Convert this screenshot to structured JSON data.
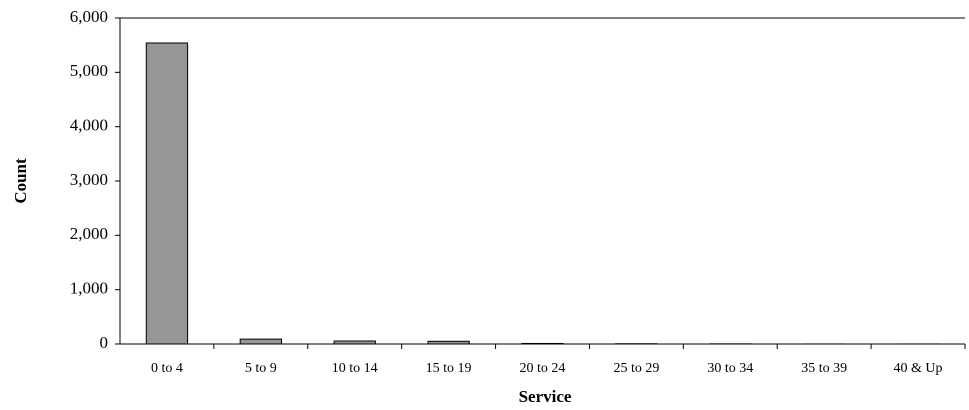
{
  "chart_data": {
    "type": "bar",
    "x_label": "Service",
    "y_label": "Count",
    "categories": [
      "0 to 4",
      "5 to 9",
      "10 to 14",
      "15 to 19",
      "20 to 24",
      "25 to 29",
      "30 to 34",
      "35 to 39",
      "40 & Up"
    ],
    "values": [
      5540,
      90,
      55,
      50,
      10,
      5,
      3,
      1,
      1
    ],
    "color": "#969696",
    "ylim": [
      0,
      6000
    ],
    "yticks": [
      0,
      {
        "value": 1000,
        "label": "1,000"
      },
      {
        "value": 2000,
        "label": "2,000"
      },
      {
        "value": 3000,
        "label": "3,000"
      },
      {
        "value": 4000,
        "label": "4,000"
      },
      {
        "value": 5000,
        "label": "5,000"
      },
      {
        "value": 6000,
        "label": "6,000"
      }
    ],
    "grid": false
  }
}
